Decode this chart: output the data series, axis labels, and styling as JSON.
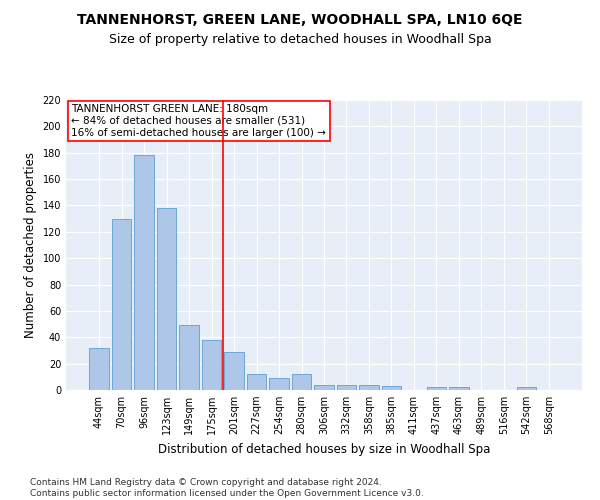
{
  "title": "TANNENHORST, GREEN LANE, WOODHALL SPA, LN10 6QE",
  "subtitle": "Size of property relative to detached houses in Woodhall Spa",
  "xlabel": "Distribution of detached houses by size in Woodhall Spa",
  "ylabel": "Number of detached properties",
  "categories": [
    "44sqm",
    "70sqm",
    "96sqm",
    "123sqm",
    "149sqm",
    "175sqm",
    "201sqm",
    "227sqm",
    "254sqm",
    "280sqm",
    "306sqm",
    "332sqm",
    "358sqm",
    "385sqm",
    "411sqm",
    "437sqm",
    "463sqm",
    "489sqm",
    "516sqm",
    "542sqm",
    "568sqm"
  ],
  "values": [
    32,
    130,
    178,
    138,
    49,
    38,
    29,
    12,
    9,
    12,
    4,
    4,
    4,
    3,
    0,
    2,
    2,
    0,
    0,
    2,
    0
  ],
  "bar_color": "#aec6e8",
  "bar_edge_color": "#5a9fd4",
  "vline_x_index": 5.5,
  "vline_color": "red",
  "annotation_text": "TANNENHORST GREEN LANE: 180sqm\n← 84% of detached houses are smaller (531)\n16% of semi-detached houses are larger (100) →",
  "ylim": [
    0,
    220
  ],
  "yticks": [
    0,
    20,
    40,
    60,
    80,
    100,
    120,
    140,
    160,
    180,
    200,
    220
  ],
  "bg_color": "#e8eef7",
  "grid_color": "white",
  "footer": "Contains HM Land Registry data © Crown copyright and database right 2024.\nContains public sector information licensed under the Open Government Licence v3.0.",
  "title_fontsize": 10,
  "subtitle_fontsize": 9,
  "xlabel_fontsize": 8.5,
  "ylabel_fontsize": 8.5,
  "tick_fontsize": 7,
  "annotation_fontsize": 7.5,
  "footer_fontsize": 6.5
}
